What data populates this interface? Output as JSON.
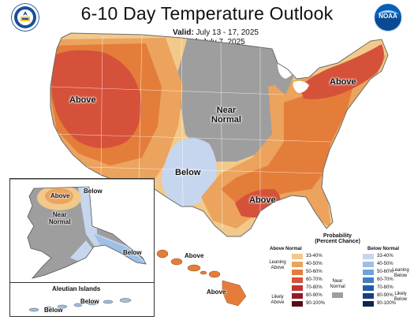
{
  "header": {
    "title": "6-10 Day Temperature Outlook",
    "valid_label": "Valid:",
    "valid_value": "July 13 - 17, 2025",
    "issued_label": "Issued:",
    "issued_value": "July 7, 2025"
  },
  "logos": {
    "left": {
      "icon": "commerce-seal-icon",
      "colors": [
        "#1a4f9c",
        "#f4c430"
      ]
    },
    "right": {
      "icon": "noaa-logo-icon",
      "text": "NOAA",
      "colors": [
        "#0a5fb4",
        "#9fd3ff"
      ]
    }
  },
  "map_labels": {
    "west": "Above",
    "central_line1": "Near",
    "central_line2": "Normal",
    "southwest": "Below",
    "northeast": "Above",
    "gulf": "Above"
  },
  "alaska": {
    "above": "Above",
    "below_top": "Below",
    "near_line1": "Near",
    "near_line2": "Normal",
    "below_south": "Below"
  },
  "aleutians": {
    "title": "Aleutian Islands",
    "below_left": "Below",
    "below_right": "Below"
  },
  "hawaii": {
    "above_top": "Above",
    "above_bottom": "Above"
  },
  "legend": {
    "title_line1": "Probability",
    "title_line2": "(Percent Chance)",
    "above_header": "Above Normal",
    "below_header": "Below Normal",
    "near_label_line1": "Near",
    "near_label_line2": "Normal",
    "leaning_above_line1": "Leaning",
    "leaning_above_line2": "Above",
    "likely_above_line1": "Likely",
    "likely_above_line2": "Above",
    "leaning_below_line1": "Leaning",
    "leaning_below_line2": "Below",
    "likely_below_line1": "Likely",
    "likely_below_line2": "Below",
    "above_bins": [
      {
        "label": "33-40%",
        "color": "#f2c98a"
      },
      {
        "label": "40-50%",
        "color": "#eba35d"
      },
      {
        "label": "50-60%",
        "color": "#e47d3a"
      },
      {
        "label": "60-70%",
        "color": "#d6513a"
      },
      {
        "label": "70-80%",
        "color": "#c03432"
      },
      {
        "label": "80-90%",
        "color": "#8e1c25"
      },
      {
        "label": "90-100%",
        "color": "#5a0c14"
      }
    ],
    "below_bins": [
      {
        "label": "33-40%",
        "color": "#c6d6ee"
      },
      {
        "label": "40-50%",
        "color": "#9cc0e6"
      },
      {
        "label": "50-60%",
        "color": "#6ea4d8"
      },
      {
        "label": "60-70%",
        "color": "#3f80c2"
      },
      {
        "label": "70-80%",
        "color": "#235ea8"
      },
      {
        "label": "80-90%",
        "color": "#17407e"
      },
      {
        "label": "90-100%",
        "color": "#0c2450"
      }
    ],
    "near_color": "#9e9e9e"
  }
}
